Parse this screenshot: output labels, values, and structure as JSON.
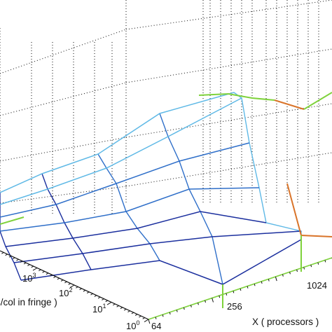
{
  "chart_data": {
    "type": "surface",
    "grid": true,
    "xlabel": "X ( processors )",
    "ylabel": "s/col in fringe )",
    "x": [
      64,
      256,
      1024
    ],
    "x_tick_labels": [
      "64",
      "256",
      "1024"
    ],
    "y_tick_labels": [
      {
        "base": "10",
        "exp": "0"
      },
      {
        "base": "10",
        "exp": "1"
      },
      {
        "base": "10",
        "exp": "2"
      },
      {
        "base": "10",
        "exp": "3"
      }
    ],
    "colors": {
      "low": "#1b2f9e",
      "mid": "#2f6fc9",
      "high": "#5fb9e6",
      "edge_green": "#7fd23c",
      "edge_orange": "#d9742a",
      "grid": "#222222",
      "text": "#111111"
    }
  }
}
